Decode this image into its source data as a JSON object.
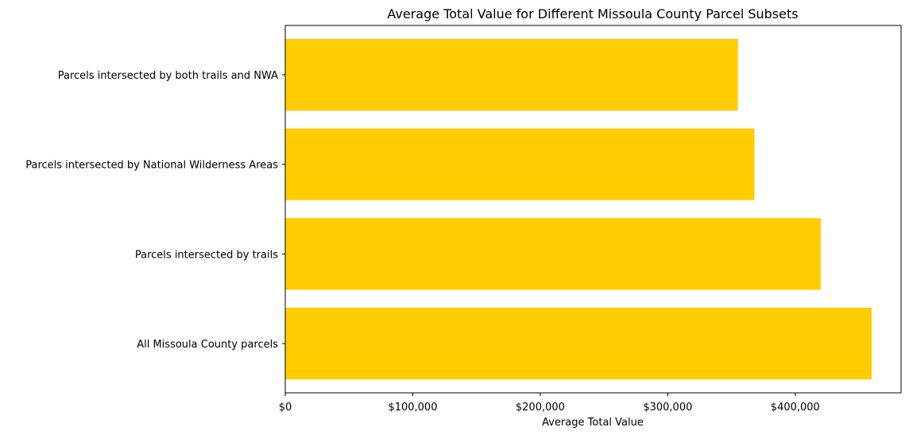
{
  "chart_data": {
    "type": "bar",
    "orientation": "horizontal",
    "title": "Average Total Value for Different Missoula County Parcel Subsets",
    "xlabel": "Average Total Value",
    "ylabel": "",
    "categories": [
      "All Missoula County parcels",
      "Parcels intersected by trails",
      "Parcels intersected by National Wilderness Areas",
      "Parcels intersected by both trails and NWA"
    ],
    "values": [
      460000,
      420000,
      368000,
      355000
    ],
    "xlim": [
      0,
      483000
    ],
    "x_ticks": [
      0,
      100000,
      200000,
      300000,
      400000
    ],
    "x_tick_labels": [
      "$0",
      "$100,000",
      "$200,000",
      "$300,000",
      "$400,000"
    ],
    "bar_color": "#FFCC00",
    "grid": false,
    "legend": "none"
  }
}
